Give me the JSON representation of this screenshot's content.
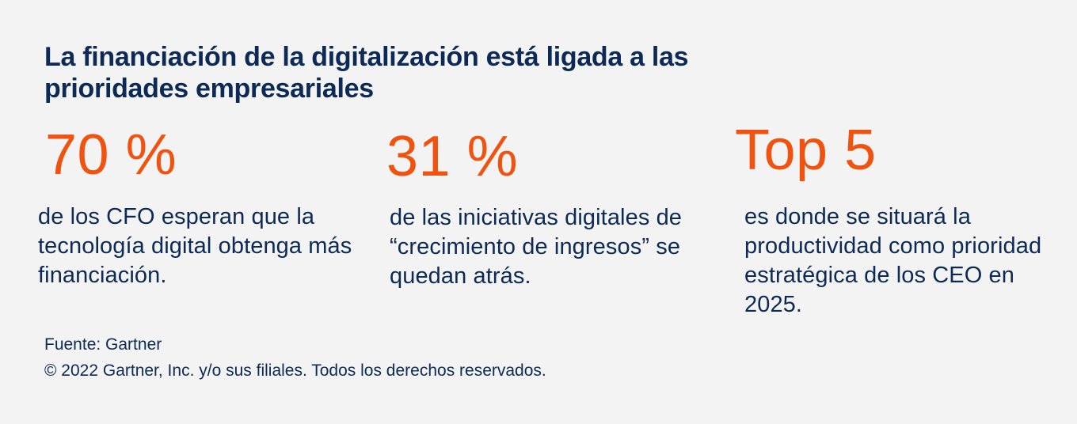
{
  "title": "La financiación de la digitalización está ligada a las prioridades empresariales",
  "stats": [
    {
      "figure": "70 %",
      "description_parts": [
        "de los CFO esperan que la tecnología digital obtenga más financiación."
      ]
    },
    {
      "figure": "31 %",
      "description_parts": [
        "de las iniciativas digitales de “crecimiento de ingresos” se quedan atrás."
      ]
    },
    {
      "figure": "Top 5",
      "description_parts": [
        "es donde se situará la productividad como prioridad estratégica de los CEO en 2025."
      ]
    }
  ],
  "source": {
    "line1": "Fuente: Gartner",
    "line2": "© 2022 Gartner, Inc. y/o sus filiales. Todos los derechos reservados."
  },
  "colors": {
    "accent": "#f0530f",
    "text": "#0c2a55",
    "background": "#f3f3f3"
  }
}
